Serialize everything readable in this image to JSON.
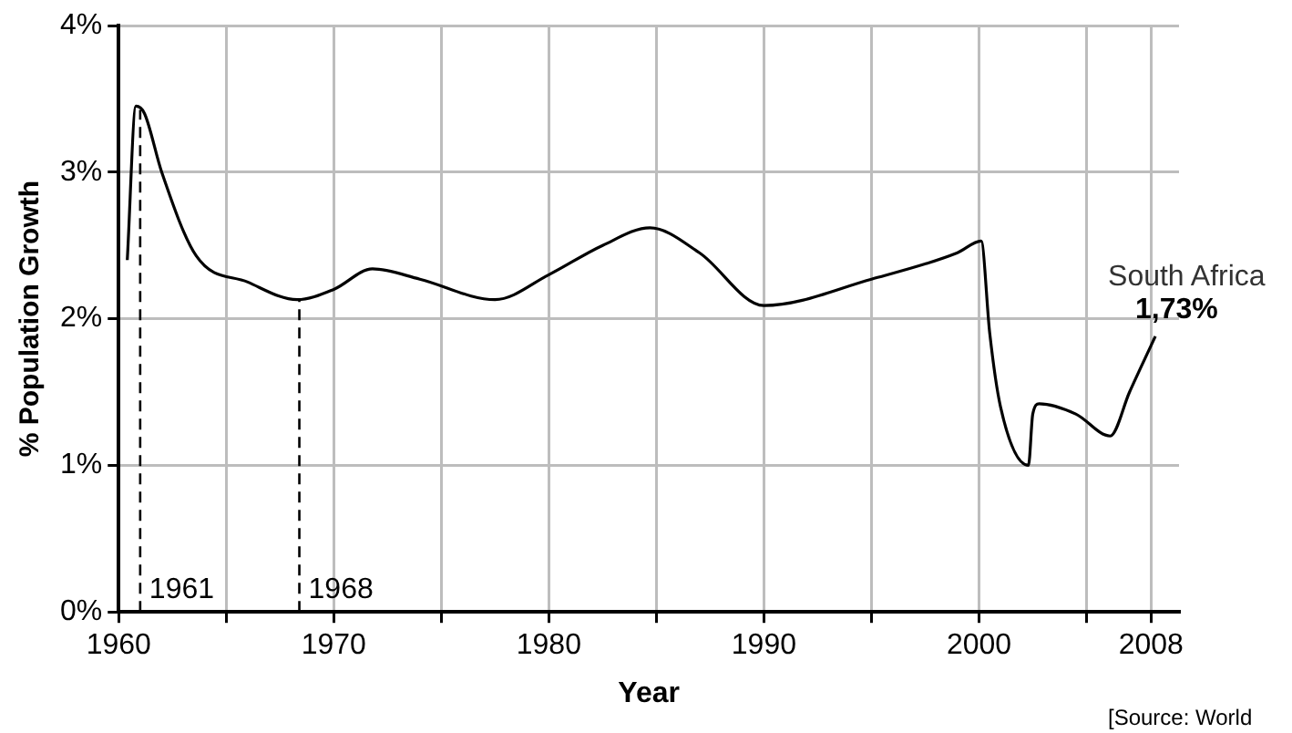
{
  "chart_data": {
    "type": "line",
    "xlabel": "Year",
    "ylabel": "% Population Growth",
    "x": [
      1960.4,
      1960.8,
      1961.2,
      1962,
      1963.6,
      1966,
      1968.3,
      1970,
      1971.8,
      1974,
      1977.5,
      1980,
      1982.5,
      1984.7,
      1987,
      1990,
      1995,
      1999,
      2000.1,
      2000.5,
      2001,
      2002.3,
      2002.5,
      2002.8,
      2004.5,
      2006.1,
      2007,
      2008.2
    ],
    "series": [
      {
        "color": "#000000",
        "values": [
          2.4,
          3.45,
          3.4,
          3.0,
          2.43,
          2.25,
          2.13,
          2.2,
          2.34,
          2.27,
          2.13,
          2.3,
          2.5,
          2.62,
          2.45,
          2.09,
          2.27,
          2.45,
          2.53,
          1.9,
          1.4,
          1.0,
          1.35,
          1.42,
          1.35,
          1.2,
          1.5,
          1.88
        ]
      }
    ],
    "xlim": [
      1960,
      2009.3
    ],
    "xticks": [
      1960,
      {
        "value": 1965,
        "label": null
      },
      1970,
      {
        "value": 1975,
        "label": null
      },
      1980,
      {
        "value": 1985,
        "label": null
      },
      1990,
      {
        "value": 1995,
        "label": null
      },
      2000,
      {
        "value": 2005,
        "label": null
      },
      2008
    ],
    "ylim": [
      0,
      4
    ],
    "yticks": [
      {
        "value": 0,
        "label": "0%"
      },
      {
        "value": 1,
        "label": "1%"
      },
      {
        "value": 2,
        "label": "2%"
      },
      {
        "value": 3,
        "label": "3%"
      },
      {
        "value": 4,
        "label": "4%"
      }
    ],
    "grid": true,
    "legend": false,
    "marker": "none",
    "line_style": "solid",
    "ref_lines": [
      {
        "axis": "x",
        "value": 1961,
        "label": "1961",
        "line_style": "dashed",
        "color": "#000000"
      },
      {
        "axis": "x",
        "value": 1968.4,
        "label": "1968",
        "line_style": "dashed",
        "color": "#000000"
      }
    ],
    "annotations": [
      {
        "text": "South Africa",
        "x": 2008.2,
        "y": 1.88
      },
      {
        "text": "1,73%",
        "x": 2008.2,
        "y": 1.88
      },
      "[Source: World"
    ]
  }
}
